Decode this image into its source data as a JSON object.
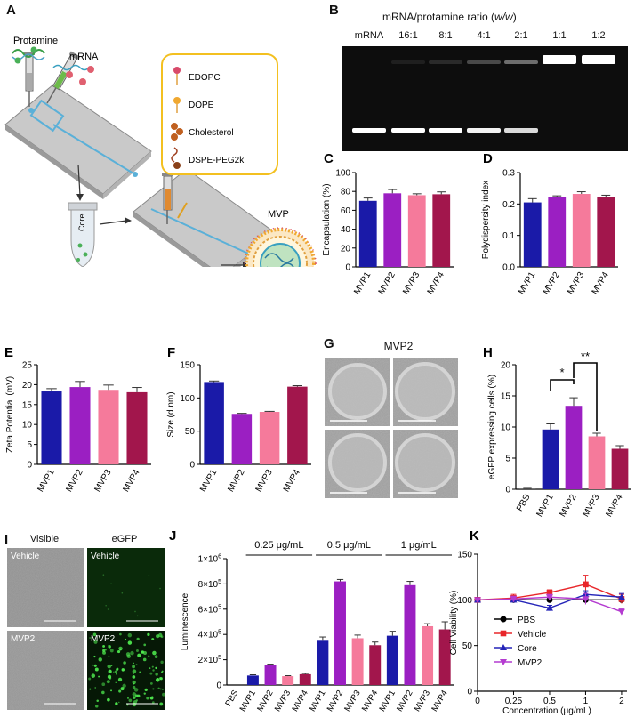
{
  "panels": {
    "A": {
      "label": "A",
      "protamine": "Protamine",
      "mrna": "mRNA",
      "core": "Core",
      "mvp": "MVP",
      "legend": [
        "EDOPC",
        "DOPE",
        "Cholesterol",
        "DSPE-PEG2k"
      ]
    },
    "B": {
      "label": "B",
      "title": "mRNA/protamine ratio (w/w)",
      "title_main": "mRNA/protamine ratio (",
      "title_italic": "w/w",
      "title_end": ")",
      "lanes": [
        "mRNA",
        "16:1",
        "8:1",
        "4:1",
        "2:1",
        "1:1",
        "1:2"
      ]
    },
    "G": {
      "label": "G",
      "title": "MVP2"
    },
    "I": {
      "label": "I",
      "col_visible": "Visible",
      "col_egfp": "eGFP",
      "tiles": [
        "Vehicle",
        "Vehicle",
        "MVP2",
        "MVP2"
      ]
    }
  },
  "chart_data": [
    {
      "id": "C",
      "type": "bar",
      "label": "C",
      "categories": [
        "MVP1",
        "MVP2",
        "MVP3",
        "MVP4"
      ],
      "values": [
        70,
        78,
        76,
        77
      ],
      "errors": [
        3,
        4,
        1.5,
        2.5
      ],
      "ylabel": "Encapsulation (%)",
      "ylim": [
        0,
        100
      ],
      "yticks": [
        "0",
        "20",
        "40",
        "60",
        "80",
        "100"
      ],
      "ytick_values": [
        0,
        20,
        40,
        60,
        80,
        100
      ]
    },
    {
      "id": "D",
      "type": "bar",
      "label": "D",
      "categories": [
        "MVP1",
        "MVP2",
        "MVP3",
        "MVP4"
      ],
      "values": [
        0.205,
        0.223,
        0.232,
        0.222
      ],
      "errors": [
        0.012,
        0.003,
        0.007,
        0.006
      ],
      "ylabel": "Polydispersity index",
      "ylim": [
        0,
        0.3
      ],
      "yticks": [
        "0.0",
        "0.1",
        "0.2",
        "0.3"
      ],
      "ytick_values": [
        0,
        0.1,
        0.2,
        0.3
      ]
    },
    {
      "id": "E",
      "type": "bar",
      "label": "E",
      "categories": [
        "MVP1",
        "MVP2",
        "MVP3",
        "MVP4"
      ],
      "values": [
        18.3,
        19.4,
        18.7,
        18.1
      ],
      "errors": [
        0.7,
        1.4,
        1.2,
        1.2
      ],
      "ylabel": "Zeta Potential (mV)",
      "ylim": [
        0,
        25
      ],
      "yticks": [
        "0",
        "5",
        "10",
        "15",
        "20",
        "25"
      ],
      "ytick_values": [
        0,
        5,
        10,
        15,
        20,
        25
      ]
    },
    {
      "id": "F",
      "type": "bar",
      "label": "F",
      "categories": [
        "MVP1",
        "MVP2",
        "MVP3",
        "MVP4"
      ],
      "values": [
        124,
        76,
        79,
        117
      ],
      "errors": [
        1.5,
        0.8,
        0.8,
        1.5
      ],
      "ylabel": "Size (d.nm)",
      "ylim": [
        0,
        150
      ],
      "yticks": [
        "0",
        "50",
        "100",
        "150"
      ],
      "ytick_values": [
        0,
        50,
        100,
        150
      ]
    },
    {
      "id": "H",
      "type": "bar",
      "label": "H",
      "categories": [
        "PBS",
        "MVP1",
        "MVP2",
        "MVP3",
        "MVP4"
      ],
      "values": [
        0.1,
        9.6,
        13.4,
        8.5,
        6.5
      ],
      "errors": [
        0.05,
        0.9,
        1.3,
        0.5,
        0.5
      ],
      "ylabel": "eGFP expressing cells (%)",
      "ylim": [
        0,
        20
      ],
      "yticks": [
        "0",
        "5",
        "10",
        "15",
        "20"
      ],
      "ytick_values": [
        0,
        5,
        10,
        15,
        20
      ],
      "annotations": [
        {
          "text": "*",
          "between": [
            "MVP1",
            "MVP2"
          ]
        },
        {
          "text": "**",
          "between": [
            "MVP2",
            "MVP3"
          ]
        }
      ]
    },
    {
      "id": "J",
      "type": "bar",
      "label": "J",
      "categories": [
        "PBS",
        "MVP1",
        "MVP2",
        "MVP3",
        "MVP4",
        "MVP1",
        "MVP2",
        "MVP3",
        "MVP4",
        "MVP1",
        "MVP2",
        "MVP3",
        "MVP4"
      ],
      "values": [
        0,
        75000,
        155000,
        70000,
        85000,
        350000,
        820000,
        370000,
        315000,
        390000,
        790000,
        465000,
        440000
      ],
      "errors": [
        0,
        6000,
        10000,
        4000,
        6000,
        30000,
        15000,
        25000,
        25000,
        35000,
        30000,
        20000,
        60000
      ],
      "groups": [
        "0.25 μg/mL",
        "0.5 μg/mL",
        "1 μg/mL"
      ],
      "ylabel": "Luminescence",
      "ylim": [
        0,
        1000000
      ],
      "yticks_base": [
        "0",
        "2×10",
        "4×10",
        "6×10",
        "8×10",
        "1×10"
      ],
      "ytick_exp": "5",
      "ytick_exp_last": "6",
      "ytick_values": [
        0,
        200000,
        400000,
        600000,
        800000,
        1000000
      ]
    },
    {
      "id": "K",
      "type": "line",
      "label": "K",
      "xlabel": "Concentration (μg/mL)",
      "ylabel": "Cell Viability (%)",
      "xticks": [
        "0",
        "0.25",
        "0.5",
        "1",
        "2"
      ],
      "ylim": [
        0,
        150
      ],
      "yticks": [
        "0",
        "50",
        "100",
        "150"
      ],
      "ytick_values": [
        0,
        50,
        100,
        150
      ],
      "series": [
        {
          "name": "PBS",
          "color": "#000000",
          "marker": "circle",
          "values": [
            100,
            100,
            100,
            100,
            100
          ],
          "errors": [
            0,
            0,
            0,
            0,
            0
          ]
        },
        {
          "name": "Vehicle",
          "color": "#e8262a",
          "marker": "square",
          "values": [
            100,
            102,
            108,
            117,
            101
          ],
          "errors": [
            0,
            4,
            3,
            10,
            5
          ]
        },
        {
          "name": "Core",
          "color": "#2424b8",
          "marker": "triangle-up",
          "values": [
            100,
            100,
            91,
            106,
            103
          ],
          "errors": [
            0,
            3,
            3,
            4,
            4
          ]
        },
        {
          "name": "MVP2",
          "color": "#b43bd0",
          "marker": "triangle-down",
          "values": [
            100,
            101,
            103,
            101,
            87
          ],
          "errors": [
            0,
            3,
            3,
            6,
            3
          ]
        }
      ]
    }
  ],
  "colors": {
    "bar4": [
      "#1a1aa8",
      "#9b1fc2",
      "#f57a9b",
      "#a2164c"
    ],
    "pbs": "#555555"
  }
}
